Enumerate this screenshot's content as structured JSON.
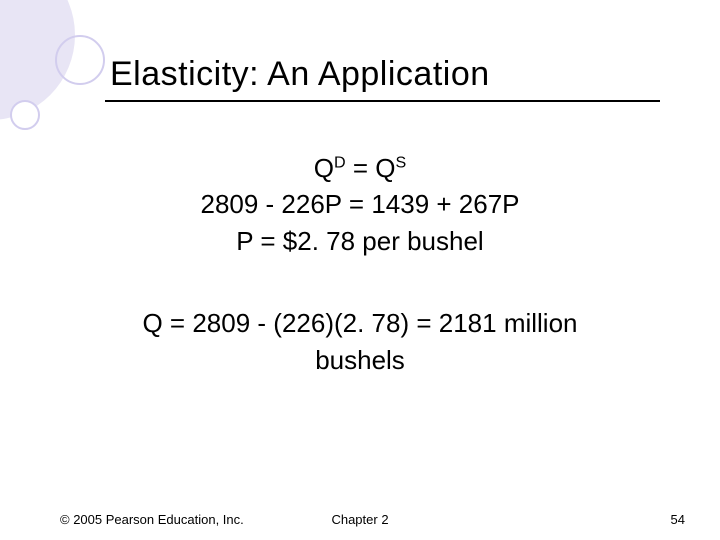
{
  "title": "Elasticity:  An Application",
  "equations": {
    "eq1_left": "Q",
    "eq1_sup_left": "D",
    "eq1_mid": " = Q",
    "eq1_sup_right": "S",
    "line2": "2809 - 226P = 1439 + 267P",
    "line3": "P = $2. 78 per bushel",
    "line4": "Q = 2809 - (226)(2. 78) = 2181 million",
    "line5": "bushels"
  },
  "footer": {
    "copyright": "© 2005 Pearson Education, Inc.",
    "chapter": "Chapter 2",
    "page": "54"
  },
  "colors": {
    "decor_fill": "#e8e5f5",
    "decor_stroke": "#c5c0e8",
    "text": "#000000",
    "background": "#ffffff"
  }
}
